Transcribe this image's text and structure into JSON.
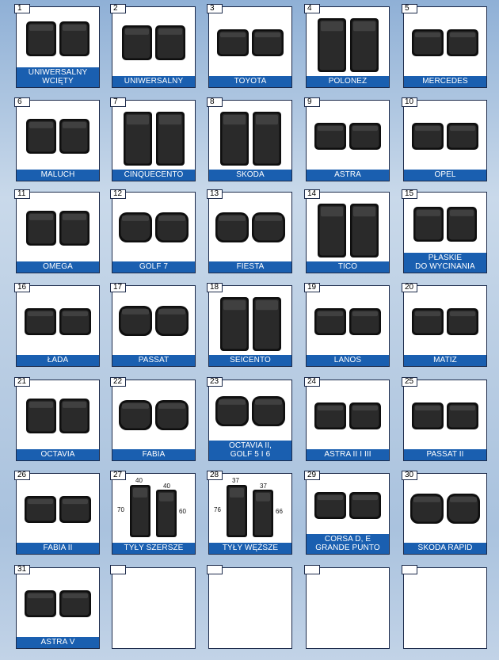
{
  "tiles": [
    {
      "number": "1",
      "label": [
        "UNIWERSALNY",
        "WCIĘTY"
      ],
      "shape": "rect"
    },
    {
      "number": "2",
      "label": [
        "UNIWERSALNY"
      ],
      "shape": "rect"
    },
    {
      "number": "3",
      "label": [
        "TOYOTA"
      ],
      "shape": "wide"
    },
    {
      "number": "4",
      "label": [
        "POLONEZ"
      ],
      "shape": "tall"
    },
    {
      "number": "5",
      "label": [
        "MERCEDES"
      ],
      "shape": "wide"
    },
    {
      "number": "6",
      "label": [
        "MALUCH"
      ],
      "shape": "rect"
    },
    {
      "number": "7",
      "label": [
        "CINQUECENTO"
      ],
      "shape": "tall"
    },
    {
      "number": "8",
      "label": [
        "SKODA"
      ],
      "shape": "tall"
    },
    {
      "number": "9",
      "label": [
        "ASTRA"
      ],
      "shape": "wide"
    },
    {
      "number": "10",
      "label": [
        "OPEL"
      ],
      "shape": "wide"
    },
    {
      "number": "11",
      "label": [
        "OMEGA"
      ],
      "shape": "rect"
    },
    {
      "number": "12",
      "label": [
        "GOLF 7"
      ],
      "shape": "round"
    },
    {
      "number": "13",
      "label": [
        "FIESTA"
      ],
      "shape": "round"
    },
    {
      "number": "14",
      "label": [
        "TICO"
      ],
      "shape": "tall"
    },
    {
      "number": "15",
      "label": [
        "PŁASKIE",
        "DO WYCINANIA"
      ],
      "shape": "rect"
    },
    {
      "number": "16",
      "label": [
        "ŁADA"
      ],
      "shape": "wide"
    },
    {
      "number": "17",
      "label": [
        "PASSAT"
      ],
      "shape": "round"
    },
    {
      "number": "18",
      "label": [
        "SEICENTO"
      ],
      "shape": "tall"
    },
    {
      "number": "19",
      "label": [
        "LANOS"
      ],
      "shape": "wide"
    },
    {
      "number": "20",
      "label": [
        "MATIZ"
      ],
      "shape": "wide"
    },
    {
      "number": "21",
      "label": [
        "OCTAVIA"
      ],
      "shape": "rect"
    },
    {
      "number": "22",
      "label": [
        "FABIA"
      ],
      "shape": "round"
    },
    {
      "number": "23",
      "label": [
        "OCTAVIA II,",
        "GOLF 5 i 6"
      ],
      "shape": "round"
    },
    {
      "number": "24",
      "label": [
        "ASTRA II i III"
      ],
      "shape": "wide"
    },
    {
      "number": "25",
      "label": [
        "PASSAT II"
      ],
      "shape": "wide"
    },
    {
      "number": "26",
      "label": [
        "FABIA II"
      ],
      "shape": "wide"
    },
    {
      "number": "27",
      "label": [
        "TYŁY SZERSZE"
      ],
      "shape": "dims",
      "dims": {
        "top_left": "40",
        "top_right": "40",
        "left": "70",
        "right": "60"
      }
    },
    {
      "number": "28",
      "label": [
        "TYŁY WĘŻSZE"
      ],
      "shape": "dims",
      "dims": {
        "top_left": "37",
        "top_right": "37",
        "left": "76",
        "right": "66"
      }
    },
    {
      "number": "29",
      "label": [
        "CORSA D, E",
        "GRANDE PUNTO"
      ],
      "shape": "wide"
    },
    {
      "number": "30",
      "label": [
        "SKODA RAPID"
      ],
      "shape": "round"
    },
    {
      "number": "31",
      "label": [
        "ASTRA V"
      ],
      "shape": "wide"
    },
    {
      "number": "",
      "label": [],
      "shape": "empty"
    },
    {
      "number": "",
      "label": [],
      "shape": "empty"
    },
    {
      "number": "",
      "label": [],
      "shape": "empty"
    },
    {
      "number": "",
      "label": [],
      "shape": "empty"
    }
  ],
  "colors": {
    "label_bg": "#1a5fb0",
    "mat": "#2a2a2a",
    "mat_edge": "#0e0e0e",
    "mat_hi": "#5a5a5a"
  }
}
